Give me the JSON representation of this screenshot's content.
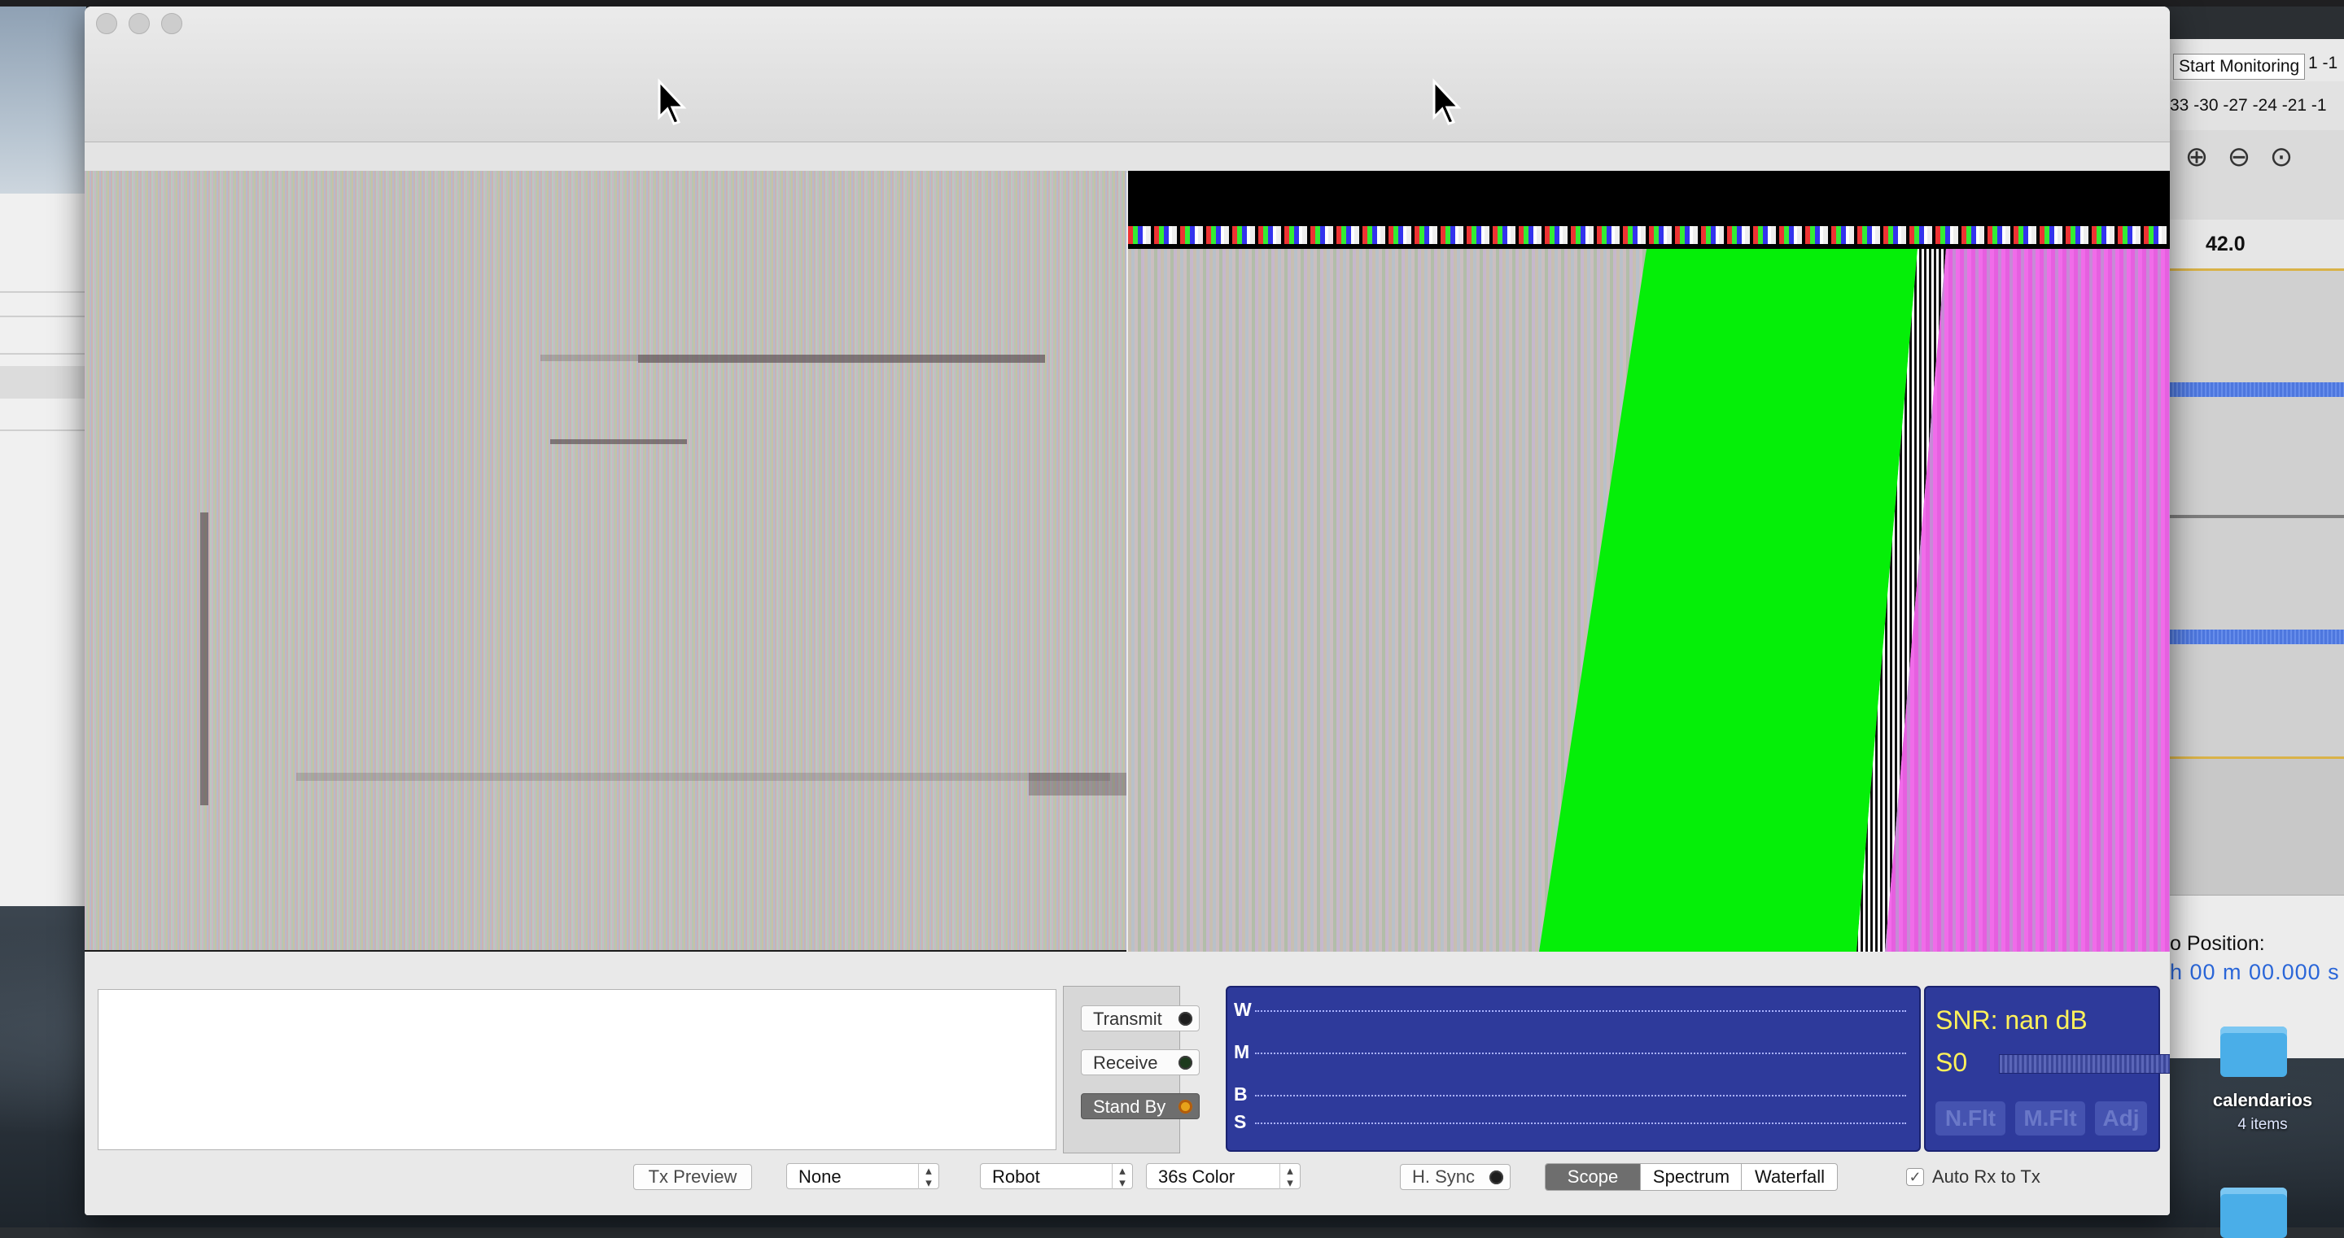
{
  "audio_app": {
    "monitor_button": "Start Monitoring",
    "meter_tail": "1 -1",
    "meter_scale": "33 -30 -27 -24 -21 -1",
    "ruler_value": "42.0",
    "audio_position_label": "o Position:",
    "audio_position_value": "h 00 m 00.000 s"
  },
  "desktop": {
    "folder_name": "calendarios",
    "folder_count": "4 items"
  },
  "controls": {
    "transmit_label": "Transmit",
    "receive_label": "Receive",
    "standby_label": "Stand By",
    "scope_labels": [
      "W",
      "M",
      "B",
      "S"
    ],
    "snr_text": "SNR:  nan dB",
    "s_meter_text": "S0",
    "snr_buttons": [
      "N.Flt",
      "M.Flt",
      "Adj"
    ],
    "tx_preview_label": "Tx Preview",
    "none_select": "None",
    "mode_select": "Robot",
    "submode_select": "36s Color",
    "hsync_label": "H. Sync",
    "scope_tabs": [
      "Scope",
      "Spectrum",
      "Waterfall"
    ],
    "scope_tab_selected": "Scope",
    "auto_rx_label": "Auto Rx to Tx",
    "auto_rx_checked": true,
    "standby_active": true
  },
  "colors": {
    "panel_blue": "#2e3a9b",
    "snr_yellow": "#fff15a",
    "standby_led": "#e7a21a",
    "tx_green": "#05ef08"
  }
}
